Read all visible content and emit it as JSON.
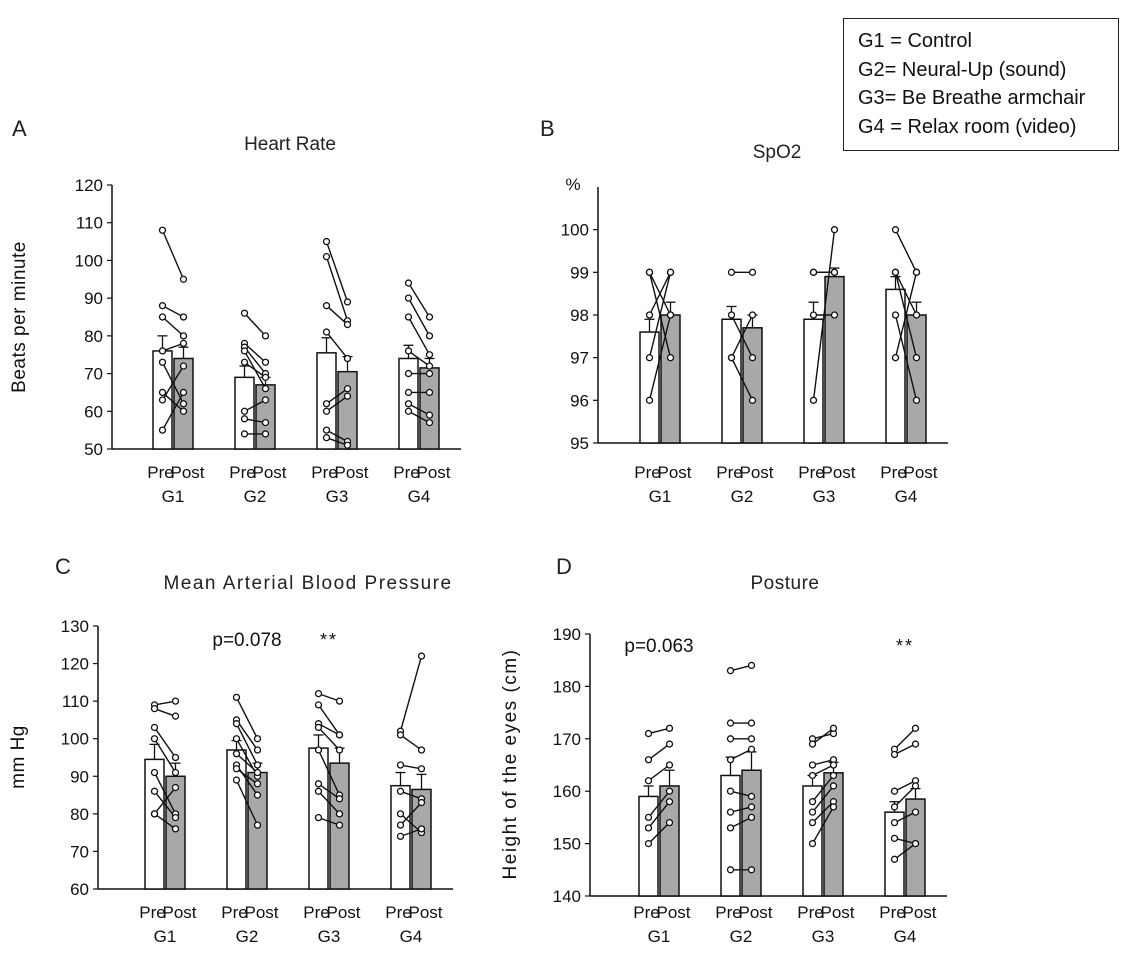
{
  "legend": {
    "g1": "G1 = Control",
    "g2": "G2= Neural-Up (sound)",
    "g3": "G3= Be Breathe armchair",
    "g4": "G4 = Relax room (video)"
  },
  "chart_data": [
    {
      "type": "bar",
      "panel_letter": "A",
      "title": "Heart Rate",
      "ylabel": "Beats per minute",
      "unit_label": "",
      "ylim": [
        50,
        120
      ],
      "yticks": [
        50,
        60,
        70,
        80,
        90,
        100,
        110,
        120
      ],
      "categories": [
        "G1",
        "G2",
        "G3",
        "G4"
      ],
      "bar_labels": [
        "Pre",
        "Post"
      ],
      "series": [
        {
          "name": "Pre",
          "values": [
            76,
            69,
            75.5,
            74
          ],
          "errors": [
            4,
            3,
            4,
            3.5
          ]
        },
        {
          "name": "Post",
          "values": [
            74,
            67,
            70.5,
            71.5
          ],
          "errors": [
            3,
            2,
            4,
            2.5
          ]
        }
      ],
      "paired_points": [
        [
          [
            108,
            95
          ],
          [
            88,
            85
          ],
          [
            85,
            80
          ],
          [
            76,
            78
          ],
          [
            65,
            60
          ],
          [
            63,
            72
          ],
          [
            55,
            65
          ],
          [
            73,
            62
          ]
        ],
        [
          [
            86,
            80
          ],
          [
            78,
            73
          ],
          [
            77,
            70
          ],
          [
            76,
            66
          ],
          [
            73,
            69
          ],
          [
            60,
            63
          ],
          [
            58,
            57
          ],
          [
            54,
            54
          ]
        ],
        [
          [
            105,
            89
          ],
          [
            101,
            84
          ],
          [
            88,
            83
          ],
          [
            81,
            74
          ],
          [
            62,
            66
          ],
          [
            60,
            64
          ],
          [
            55,
            52
          ],
          [
            53,
            51
          ]
        ],
        [
          [
            94,
            85
          ],
          [
            90,
            80
          ],
          [
            85,
            75
          ],
          [
            76,
            72
          ],
          [
            70,
            70
          ],
          [
            65,
            65
          ],
          [
            62,
            59
          ],
          [
            60,
            57
          ]
        ]
      ],
      "annotations": []
    },
    {
      "type": "bar",
      "panel_letter": "B",
      "title": "SpO2",
      "ylabel": "",
      "unit_label": "%",
      "ylim": [
        95,
        101
      ],
      "yticks": [
        95,
        96,
        97,
        98,
        99,
        100
      ],
      "categories": [
        "G1",
        "G2",
        "G3",
        "G4"
      ],
      "bar_labels": [
        "Pre",
        "Post"
      ],
      "series": [
        {
          "name": "Pre",
          "values": [
            97.6,
            97.9,
            97.9,
            98.6
          ],
          "errors": [
            0.3,
            0.3,
            0.4,
            0.3
          ]
        },
        {
          "name": "Post",
          "values": [
            98.0,
            97.7,
            98.9,
            98.0
          ],
          "errors": [
            0.3,
            0.3,
            0.2,
            0.3
          ]
        }
      ],
      "paired_points": [
        [
          [
            99,
            98
          ],
          [
            99,
            97
          ],
          [
            98,
            99
          ],
          [
            97,
            99
          ],
          [
            96,
            98
          ]
        ],
        [
          [
            99,
            99
          ],
          [
            98,
            97
          ],
          [
            97,
            98
          ],
          [
            97,
            96
          ]
        ],
        [
          [
            99,
            99
          ],
          [
            98,
            98
          ],
          [
            96,
            100
          ],
          [
            99,
            99
          ]
        ],
        [
          [
            100,
            99
          ],
          [
            99,
            98
          ],
          [
            98,
            96
          ],
          [
            97,
            99
          ],
          [
            99,
            97
          ]
        ]
      ],
      "annotations": []
    },
    {
      "type": "bar",
      "panel_letter": "C",
      "title": "Mean Arterial Blood Pressure",
      "ylabel": "mm Hg",
      "unit_label": "",
      "ylim": [
        60,
        130
      ],
      "yticks": [
        60,
        70,
        80,
        90,
        100,
        110,
        120,
        130
      ],
      "categories": [
        "G1",
        "G2",
        "G3",
        "G4"
      ],
      "bar_labels": [
        "Pre",
        "Post"
      ],
      "series": [
        {
          "name": "Pre",
          "values": [
            94.5,
            97,
            97.5,
            87.5
          ],
          "errors": [
            4,
            2.5,
            3.5,
            3.5
          ]
        },
        {
          "name": "Post",
          "values": [
            90,
            91,
            93.5,
            86.5
          ],
          "errors": [
            3.5,
            2.5,
            4,
            4
          ]
        }
      ],
      "paired_points": [
        [
          [
            109,
            110
          ],
          [
            108,
            106
          ],
          [
            103,
            95
          ],
          [
            100,
            91
          ],
          [
            91,
            80
          ],
          [
            86,
            79
          ],
          [
            80,
            87
          ],
          [
            80,
            76
          ]
        ],
        [
          [
            111,
            100
          ],
          [
            105,
            97
          ],
          [
            104,
            93
          ],
          [
            100,
            90
          ],
          [
            96,
            91
          ],
          [
            93,
            85
          ],
          [
            89,
            77
          ],
          [
            92,
            88
          ]
        ],
        [
          [
            112,
            110
          ],
          [
            109,
            101
          ],
          [
            104,
            101
          ],
          [
            103,
            97
          ],
          [
            97,
            85
          ],
          [
            88,
            84
          ],
          [
            86,
            80
          ],
          [
            79,
            77
          ]
        ],
        [
          [
            102,
            122
          ],
          [
            101,
            97
          ],
          [
            93,
            92
          ],
          [
            86,
            84
          ],
          [
            80,
            75
          ],
          [
            77,
            83
          ],
          [
            74,
            76
          ]
        ]
      ],
      "annotations": [
        {
          "text": "p=0.078",
          "group": 1
        },
        {
          "text": "**",
          "group": 2
        }
      ]
    },
    {
      "type": "bar",
      "panel_letter": "D",
      "title": "Posture",
      "ylabel": "Height of the eyes (cm)",
      "unit_label": "",
      "ylim": [
        140,
        190
      ],
      "yticks": [
        140,
        150,
        160,
        170,
        180,
        190
      ],
      "categories": [
        "G1",
        "G2",
        "G3",
        "G4"
      ],
      "bar_labels": [
        "Pre",
        "Post"
      ],
      "series": [
        {
          "name": "Pre",
          "values": [
            159,
            163,
            161,
            156
          ],
          "errors": [
            2,
            3.5,
            2,
            2
          ]
        },
        {
          "name": "Post",
          "values": [
            161,
            164,
            163.5,
            158.5
          ],
          "errors": [
            3,
            3.5,
            2,
            2
          ]
        }
      ],
      "paired_points": [
        [
          [
            171,
            172
          ],
          [
            166,
            169
          ],
          [
            162,
            165
          ],
          [
            155,
            160
          ],
          [
            153,
            158
          ],
          [
            150,
            154
          ]
        ],
        [
          [
            183,
            184
          ],
          [
            173,
            173
          ],
          [
            170,
            170
          ],
          [
            166,
            168
          ],
          [
            160,
            159
          ],
          [
            156,
            157
          ],
          [
            153,
            155
          ],
          [
            145,
            145
          ]
        ],
        [
          [
            170,
            171
          ],
          [
            169,
            172
          ],
          [
            165,
            166
          ],
          [
            163,
            165
          ],
          [
            158,
            163
          ],
          [
            156,
            161
          ],
          [
            154,
            158
          ],
          [
            150,
            157
          ]
        ],
        [
          [
            168,
            172
          ],
          [
            167,
            169
          ],
          [
            160,
            162
          ],
          [
            157,
            161
          ],
          [
            154,
            156
          ],
          [
            151,
            150
          ],
          [
            147,
            150
          ]
        ]
      ],
      "annotations": [
        {
          "text": "p=0.063",
          "group": 0
        },
        {
          "text": "**",
          "group": 3
        }
      ]
    }
  ]
}
